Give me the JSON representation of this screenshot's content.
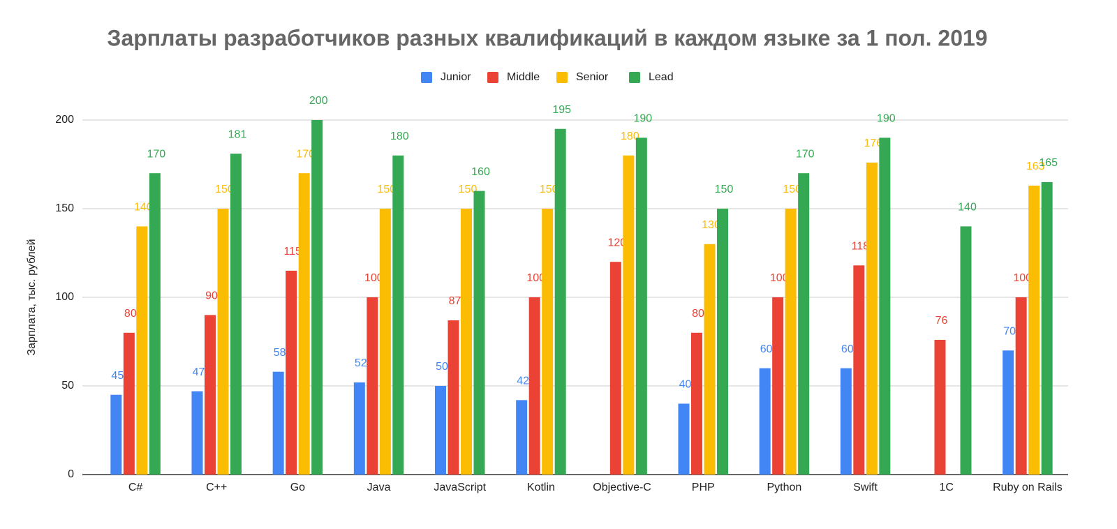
{
  "chart_data": {
    "type": "bar",
    "title": "Зарплаты разработчиков разных квалификаций в каждом языке за 1 пол. 2019",
    "y_label": "Зарплата, тыс. рублей",
    "categories": [
      "C#",
      "C++",
      "Go",
      "Java",
      "JavaScript",
      "Kotlin",
      "Objective-C",
      "PHP",
      "Python",
      "Swift",
      "1C",
      "Ruby on Rails"
    ],
    "series": [
      {
        "name": "Junior",
        "color": "#4285f4",
        "values": [
          45,
          47,
          58,
          52,
          50,
          42,
          null,
          40,
          60,
          60,
          null,
          70
        ]
      },
      {
        "name": "Middle",
        "color": "#ea4335",
        "values": [
          80,
          90,
          115,
          100,
          87,
          100,
          120,
          80,
          100,
          118,
          76,
          100
        ]
      },
      {
        "name": "Senior",
        "color": "#fbbc04",
        "values": [
          140,
          150,
          170,
          150,
          150,
          150,
          180,
          130,
          150,
          176,
          null,
          163
        ]
      },
      {
        "name": "Lead",
        "color": "#34a853",
        "values": [
          170,
          181,
          200,
          180,
          160,
          195,
          190,
          150,
          170,
          190,
          140,
          165
        ]
      }
    ],
    "ylim": [
      0,
      200
    ],
    "yticks": [
      0,
      50,
      100,
      150,
      200
    ],
    "grid": true,
    "legend": "top"
  }
}
